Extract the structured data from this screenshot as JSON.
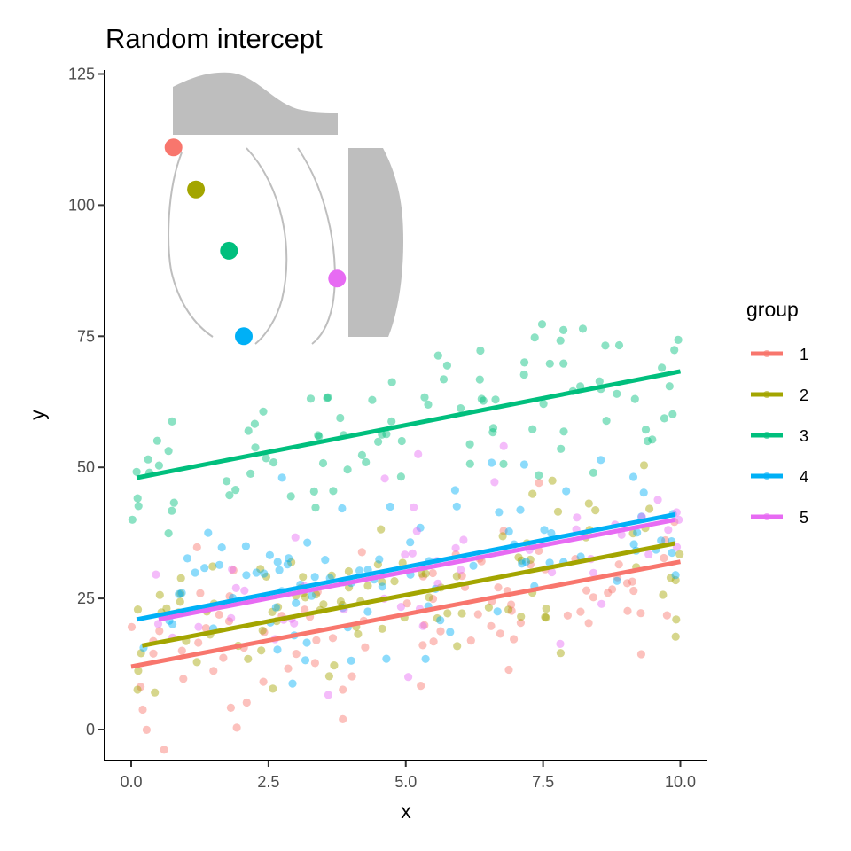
{
  "chart_data": {
    "type": "scatter",
    "title": "Random intercept",
    "xlabel": "x",
    "ylabel": "y",
    "xlim": [
      -0.5,
      10.5
    ],
    "ylim": [
      -6,
      125
    ],
    "x_ticks": [
      "0.0",
      "2.5",
      "5.0",
      "7.5",
      "10.0"
    ],
    "y_ticks": [
      "0",
      "25",
      "50",
      "75",
      "100",
      "125"
    ],
    "grid": false,
    "legend": {
      "title": "group",
      "placement": "right"
    },
    "series": [
      {
        "name": "1",
        "color": "#F8766D",
        "regression_line": {
          "x": [
            0.0,
            10.0
          ],
          "y": [
            12.0,
            32.0
          ]
        },
        "inset_point": {
          "x": 0.77,
          "y": 111
        }
      },
      {
        "name": "2",
        "color": "#A3A500",
        "regression_line": {
          "x": [
            0.2,
            9.9
          ],
          "y": [
            16.0,
            35.5
          ]
        },
        "inset_point": {
          "x": 1.18,
          "y": 103
        }
      },
      {
        "name": "3",
        "color": "#00BF7D",
        "regression_line": {
          "x": [
            0.1,
            10.0
          ],
          "y": [
            48.0,
            68.3
          ]
        },
        "inset_point": {
          "x": 1.78,
          "y": 91.3
        }
      },
      {
        "name": "4",
        "color": "#00B0F6",
        "regression_line": {
          "x": [
            0.1,
            9.9
          ],
          "y": [
            21.0,
            41.0
          ]
        },
        "inset_point": {
          "x": 2.05,
          "y": 75
        }
      },
      {
        "name": "5",
        "color": "#E76BF3",
        "regression_line": {
          "x": [
            0.5,
            9.9
          ],
          "y": [
            21.0,
            40.0
          ]
        },
        "inset_point": {
          "x": 3.75,
          "y": 86
        }
      }
    ]
  }
}
